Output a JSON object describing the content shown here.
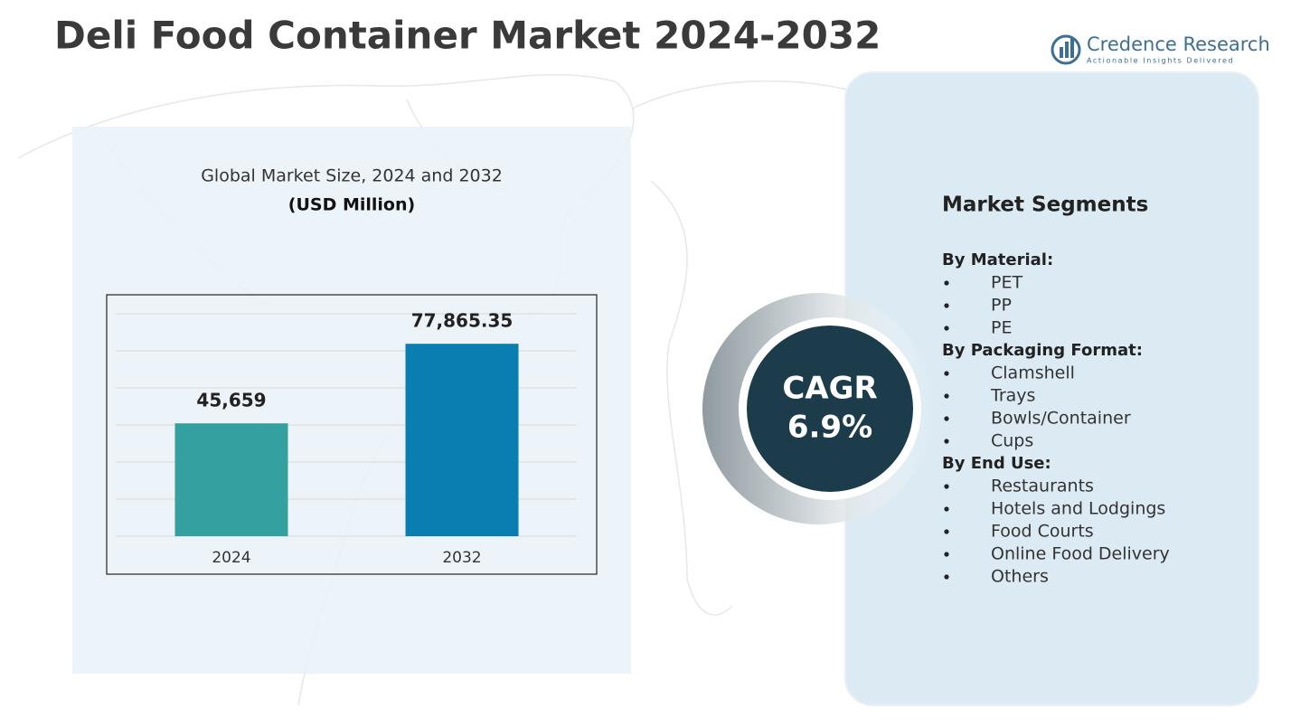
{
  "title": "Deli Food Container Market 2024-2032",
  "brand": {
    "name": "Credence Research",
    "tagline": "Actionable Insights Delivered"
  },
  "chart_data": {
    "type": "bar",
    "title": "Global Market Size, 2024 and 2032",
    "subtitle": "(USD Million)",
    "categories": [
      "2024",
      "2032"
    ],
    "values": [
      45659,
      77865.35
    ],
    "value_labels": [
      "45,659",
      "77,865.35"
    ],
    "colors": [
      "#35a0a0",
      "#0a7eb1"
    ],
    "ylim": [
      0,
      90000
    ],
    "yticks": [
      0,
      15000,
      30000,
      45000,
      60000,
      75000,
      90000
    ],
    "grid": true
  },
  "cagr": {
    "label": "CAGR",
    "value": "6.9%"
  },
  "segments": {
    "title": "Market Segments",
    "groups": [
      {
        "name": "By Material:",
        "items": [
          "PET",
          "PP",
          "PE"
        ]
      },
      {
        "name": "By Packaging Format:",
        "items": [
          "Clamshell",
          "Trays",
          "Bowls/Container",
          "Cups"
        ]
      },
      {
        "name": "By End Use:",
        "items": [
          "Restaurants",
          "Hotels and Lodgings",
          "Food Courts",
          "Online Food Delivery",
          "Others"
        ]
      }
    ]
  }
}
